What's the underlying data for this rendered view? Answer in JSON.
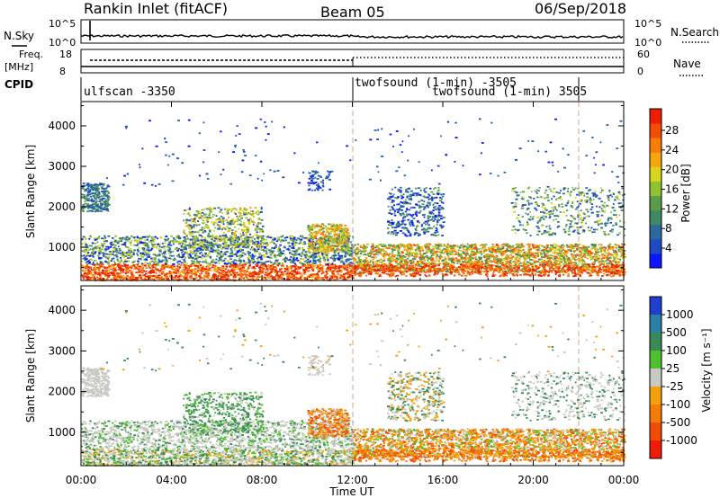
{
  "header": {
    "station": "Rankin Inlet (fitACF)",
    "beam": "Beam 05",
    "date": "06/Sep/2018"
  },
  "top_panels": {
    "nsky_label": "N.Sky",
    "nsky_ticks": [
      "10^5",
      "10^0"
    ],
    "nsearch_label": "N.Search",
    "nsearch_ticks": [
      "10^5",
      "10^0"
    ],
    "freq_label": "Freq.",
    "freq_unit": "[MHz]",
    "freq_ticks": [
      "18",
      "8"
    ],
    "nave_label": "Nave",
    "nave_ticks": [
      "60",
      "0"
    ],
    "cpid_label": "CPID",
    "cpid_entries": [
      {
        "text": "ulfscan -3350",
        "start_hour": 0
      },
      {
        "text": "twofsound (1-min) -3505",
        "start_hour": 12
      },
      {
        "text": "twofsound (1-min) 3505",
        "start_hour": 15.4
      }
    ],
    "cpid_dividers_hours": [
      12,
      22
    ]
  },
  "chart_data": [
    {
      "type": "heatmap",
      "title": "Power",
      "ylabel": "Slant Range [km]",
      "ylim": [
        180,
        4600
      ],
      "yticks": [
        "1000",
        "2000",
        "3000",
        "4000"
      ],
      "x_range_hours": [
        0,
        24
      ],
      "colorbar": {
        "label": "Power [dB]",
        "ticks": [
          "4",
          "8",
          "12",
          "16",
          "20",
          "24",
          "28"
        ],
        "colors": [
          "#0a16ff",
          "#1e4bc4",
          "#2a6aa0",
          "#3f8a64",
          "#5a9c48",
          "#8fc232",
          "#d7d51c",
          "#f4a70e",
          "#f97b08",
          "#f44d06",
          "#ee1e04"
        ]
      }
    },
    {
      "type": "heatmap",
      "title": "Velocity",
      "ylabel": "Slant Range [km]",
      "ylim": [
        180,
        4600
      ],
      "yticks": [
        "1000",
        "2000",
        "3000",
        "4000"
      ],
      "x_range_hours": [
        0,
        24
      ],
      "xticks": [
        "00:00",
        "04:00",
        "08:00",
        "12:00",
        "16:00",
        "20:00",
        "00:00"
      ],
      "xlabel": "Time UT",
      "colorbar": {
        "label": "Velocity [m s⁻¹]",
        "ticks": [
          "1000",
          "500",
          "100",
          "25",
          "-25",
          "-100",
          "-500",
          "-1000"
        ],
        "colors": [
          "#1f3fcc",
          "#2a7fa8",
          "#3a8a57",
          "#4fc12e",
          "#c9c9c3",
          "#f4a20c",
          "#f57b08",
          "#f34a06",
          "#ee1b0b"
        ]
      }
    }
  ]
}
